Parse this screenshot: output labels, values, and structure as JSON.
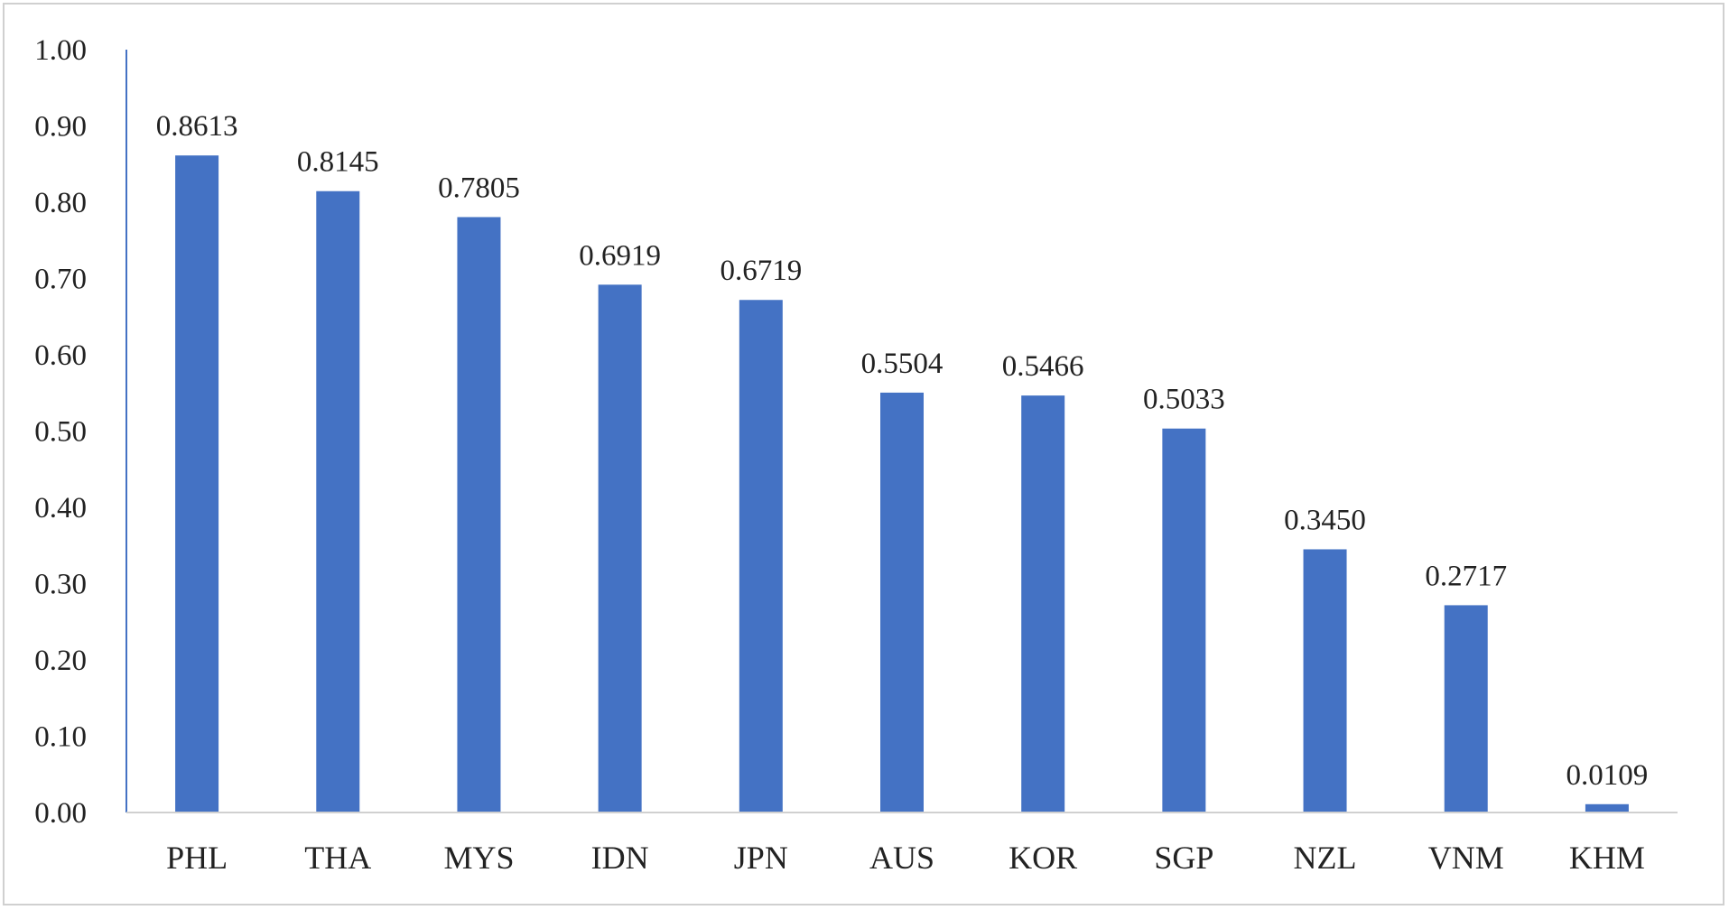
{
  "chart_data": {
    "type": "bar",
    "categories": [
      "PHL",
      "THA",
      "MYS",
      "IDN",
      "JPN",
      "AUS",
      "KOR",
      "SGP",
      "NZL",
      "VNM",
      "KHM"
    ],
    "values": [
      0.8613,
      0.8145,
      0.7805,
      0.6919,
      0.6719,
      0.5504,
      0.5466,
      0.5033,
      0.345,
      0.2717,
      0.0109
    ],
    "data_labels": [
      "0.8613",
      "0.8145",
      "0.7805",
      "0.6919",
      "0.6719",
      "0.5504",
      "0.5466",
      "0.5033",
      "0.3450",
      "0.2717",
      "0.0109"
    ],
    "y_ticks": [
      "0.00",
      "0.10",
      "0.20",
      "0.30",
      "0.40",
      "0.50",
      "0.60",
      "0.70",
      "0.80",
      "0.90",
      "1.00"
    ],
    "title": "",
    "xlabel": "",
    "ylabel": "",
    "ylim": [
      0,
      1.0
    ],
    "grid": false,
    "legend": "none",
    "colors": {
      "bar": "#4472C4",
      "axis": "#4472C4",
      "baseline": "#d0d0d0",
      "text": "#222222"
    }
  }
}
